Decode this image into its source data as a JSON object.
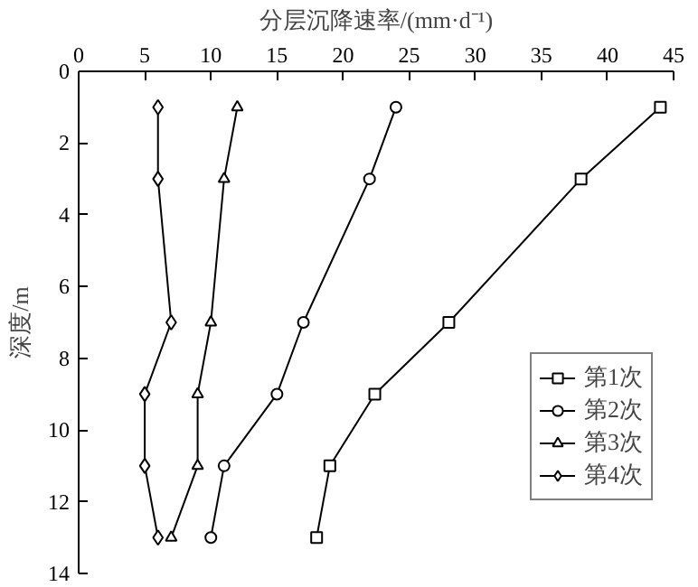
{
  "chart_data": {
    "type": "line",
    "xlabel": "分层沉降速率/(mm·d⁻¹)",
    "ylabel": "深度/m",
    "xlim": [
      0,
      45
    ],
    "xticks": [
      0,
      5,
      10,
      15,
      20,
      25,
      30,
      35,
      40,
      45
    ],
    "ylim": [
      14,
      0
    ],
    "yticks": [
      0,
      2,
      4,
      6,
      8,
      10,
      12,
      14
    ],
    "grid": false,
    "legend": "right",
    "line_style": "solid",
    "series": [
      {
        "name": "第1次",
        "color": "#000000",
        "marker": "square",
        "x": [
          44,
          38,
          28,
          22.4,
          19,
          18
        ],
        "values": [
          1,
          3,
          7,
          9,
          11,
          13
        ]
      },
      {
        "name": "第2次",
        "color": "#000000",
        "marker": "circle",
        "x": [
          24,
          22,
          17,
          15,
          11,
          10
        ],
        "values": [
          1,
          3,
          7,
          9,
          11,
          13
        ]
      },
      {
        "name": "第3次",
        "color": "#000000",
        "marker": "triangle",
        "x": [
          12,
          11,
          10,
          9,
          9,
          7
        ],
        "values": [
          1,
          3,
          7,
          9,
          11,
          13
        ]
      },
      {
        "name": "第4次",
        "color": "#000000",
        "marker": "diamond",
        "x": [
          6,
          6,
          7,
          5,
          5,
          6
        ],
        "values": [
          1,
          3,
          7,
          9,
          11,
          13
        ]
      }
    ]
  }
}
